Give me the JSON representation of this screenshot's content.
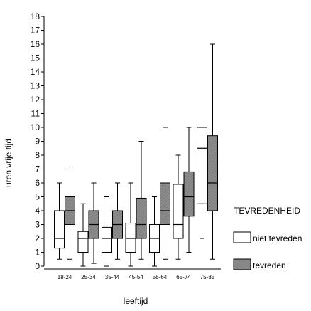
{
  "chart_data": {
    "type": "boxplot",
    "title": "",
    "xlabel": "leeftijd",
    "ylabel": "uren vrije tijd",
    "ylim": [
      0,
      18
    ],
    "yticks": [
      0,
      1,
      2,
      3,
      4,
      5,
      6,
      7,
      8,
      9,
      10,
      11,
      12,
      13,
      14,
      15,
      16,
      17,
      18
    ],
    "categories": [
      "18-24",
      "25-34",
      "35-44",
      "45-54",
      "55-64",
      "65-74",
      "75-85"
    ],
    "legend": {
      "title": "TEVREDENHEID",
      "position": "right"
    },
    "series": [
      {
        "name": "niet tevreden",
        "color": "#ffffff",
        "pattern": "none",
        "boxes": [
          {
            "whisker_low": 0.5,
            "q1": 1.3,
            "median": 2.0,
            "q3": 4.0,
            "whisker_high": 6.0
          },
          {
            "whisker_low": 0.0,
            "q1": 1.0,
            "median": 2.0,
            "q3": 2.5,
            "whisker_high": 4.5
          },
          {
            "whisker_low": 0.0,
            "q1": 1.0,
            "median": 2.0,
            "q3": 2.8,
            "whisker_high": 5.0
          },
          {
            "whisker_low": 0.0,
            "q1": 1.0,
            "median": 2.0,
            "q3": 3.1,
            "whisker_high": 6.0
          },
          {
            "whisker_low": 0.0,
            "q1": 1.0,
            "median": 2.0,
            "q3": 3.0,
            "whisker_high": 5.0
          },
          {
            "whisker_low": 0.5,
            "q1": 2.0,
            "median": 3.0,
            "q3": 5.9,
            "whisker_high": 8.0
          },
          {
            "whisker_low": 2.0,
            "q1": 4.5,
            "median": 8.5,
            "q3": 10.0,
            "whisker_high": 10.0
          }
        ]
      },
      {
        "name": "tevreden",
        "color": "#8c8c8c",
        "pattern": "hatch",
        "boxes": [
          {
            "whisker_low": 0.5,
            "q1": 3.0,
            "median": 4.0,
            "q3": 5.0,
            "whisker_high": 7.0
          },
          {
            "whisker_low": 0.2,
            "q1": 2.0,
            "median": 3.0,
            "q3": 4.0,
            "whisker_high": 6.0
          },
          {
            "whisker_low": 0.5,
            "q1": 2.0,
            "median": 3.0,
            "q3": 4.0,
            "whisker_high": 6.0
          },
          {
            "whisker_low": 0.5,
            "q1": 2.0,
            "median": 3.0,
            "q3": 4.9,
            "whisker_high": 9.0
          },
          {
            "whisker_low": 0.5,
            "q1": 3.0,
            "median": 4.0,
            "q3": 6.0,
            "whisker_high": 10.0
          },
          {
            "whisker_low": 1.0,
            "q1": 3.6,
            "median": 5.0,
            "q3": 6.8,
            "whisker_high": 10.0
          },
          {
            "whisker_low": 0.5,
            "q1": 4.0,
            "median": 6.0,
            "q3": 9.4,
            "whisker_high": 16.0
          }
        ]
      }
    ]
  }
}
